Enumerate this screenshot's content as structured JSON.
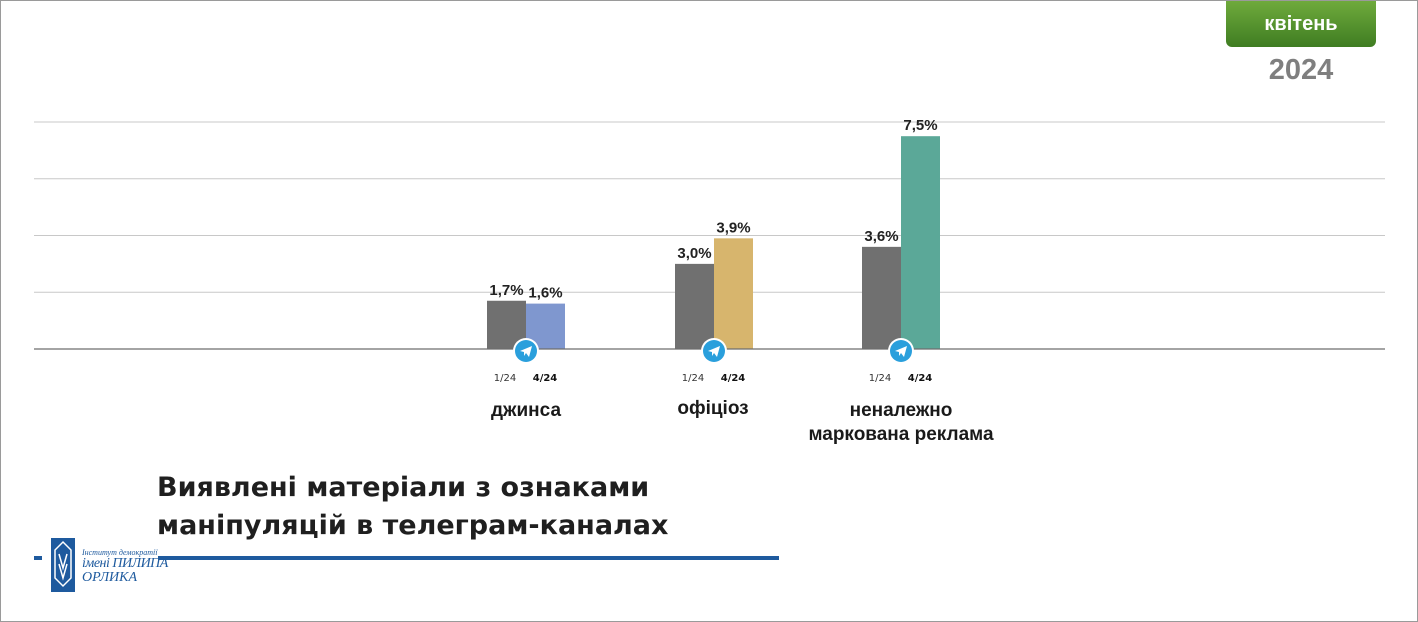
{
  "header": {
    "month": "квітень",
    "year": "2024"
  },
  "title": {
    "line1": "Виявлені матеріали з ознаками",
    "line2": "маніпуляцій в телеграм-каналах"
  },
  "logo": {
    "line1": "Інститут демократії",
    "line2": "імені ПИЛИПА",
    "line3": "ОРЛИКА"
  },
  "chart_data": {
    "type": "bar",
    "categories": [
      "джинса",
      "офіціоз",
      "неналежно маркована реклама"
    ],
    "category_lines": [
      [
        "джинса"
      ],
      [
        "офіціоз"
      ],
      [
        "неналежно",
        "маркована реклама"
      ]
    ],
    "series": [
      {
        "name": "1/24",
        "values": [
          1.7,
          3.0,
          3.6
        ],
        "labels": [
          "1,7%",
          "3,0%",
          "3,6%"
        ]
      },
      {
        "name": "4/24",
        "values": [
          1.6,
          3.9,
          7.5
        ],
        "labels": [
          "1,6%",
          "3,9%",
          "7,5%"
        ]
      }
    ],
    "series_colors": {
      "1/24": [
        "#707070",
        "#707070",
        "#707070"
      ],
      "4/24": [
        "#7f97cf",
        "#d7b56d",
        "#5ba898"
      ]
    },
    "icon": "telegram-icon",
    "ylim": [
      0,
      8
    ],
    "yticks": [
      0,
      2,
      4,
      6,
      8
    ],
    "grid": true,
    "show_y_tick_labels": false,
    "xlabel": "",
    "ylabel": ""
  }
}
